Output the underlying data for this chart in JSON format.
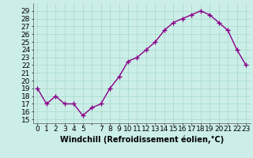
{
  "x": [
    0,
    1,
    2,
    3,
    4,
    5,
    6,
    7,
    8,
    9,
    10,
    11,
    12,
    13,
    14,
    15,
    16,
    17,
    18,
    19,
    20,
    21,
    22,
    23
  ],
  "y": [
    19,
    17,
    18,
    17,
    17,
    15.5,
    16.5,
    17,
    19,
    20.5,
    22.5,
    23,
    24,
    25,
    26.5,
    27.5,
    28,
    28.5,
    29,
    28.5,
    27.5,
    26.5,
    24,
    22
  ],
  "line_color": "#880088",
  "marker": "+",
  "marker_size": 4,
  "bg_color": "#cceee8",
  "grid_color": "#aaddcc",
  "xlabel": "Windchill (Refroidissement éolien,°C)",
  "xlabel_fontsize": 7,
  "ylabel_ticks": [
    15,
    16,
    17,
    18,
    19,
    20,
    21,
    22,
    23,
    24,
    25,
    26,
    27,
    28,
    29
  ],
  "xlim": [
    -0.5,
    23.5
  ],
  "ylim": [
    14.5,
    30.0
  ],
  "xtick_labels": [
    "0",
    "1",
    "2",
    "3",
    "4",
    "5",
    "",
    "7",
    "8",
    "9",
    "10",
    "11",
    "12",
    "13",
    "14",
    "15",
    "16",
    "17",
    "18",
    "19",
    "20",
    "21",
    "22",
    "23"
  ],
  "tick_fontsize": 6.5,
  "line_width": 1.0
}
